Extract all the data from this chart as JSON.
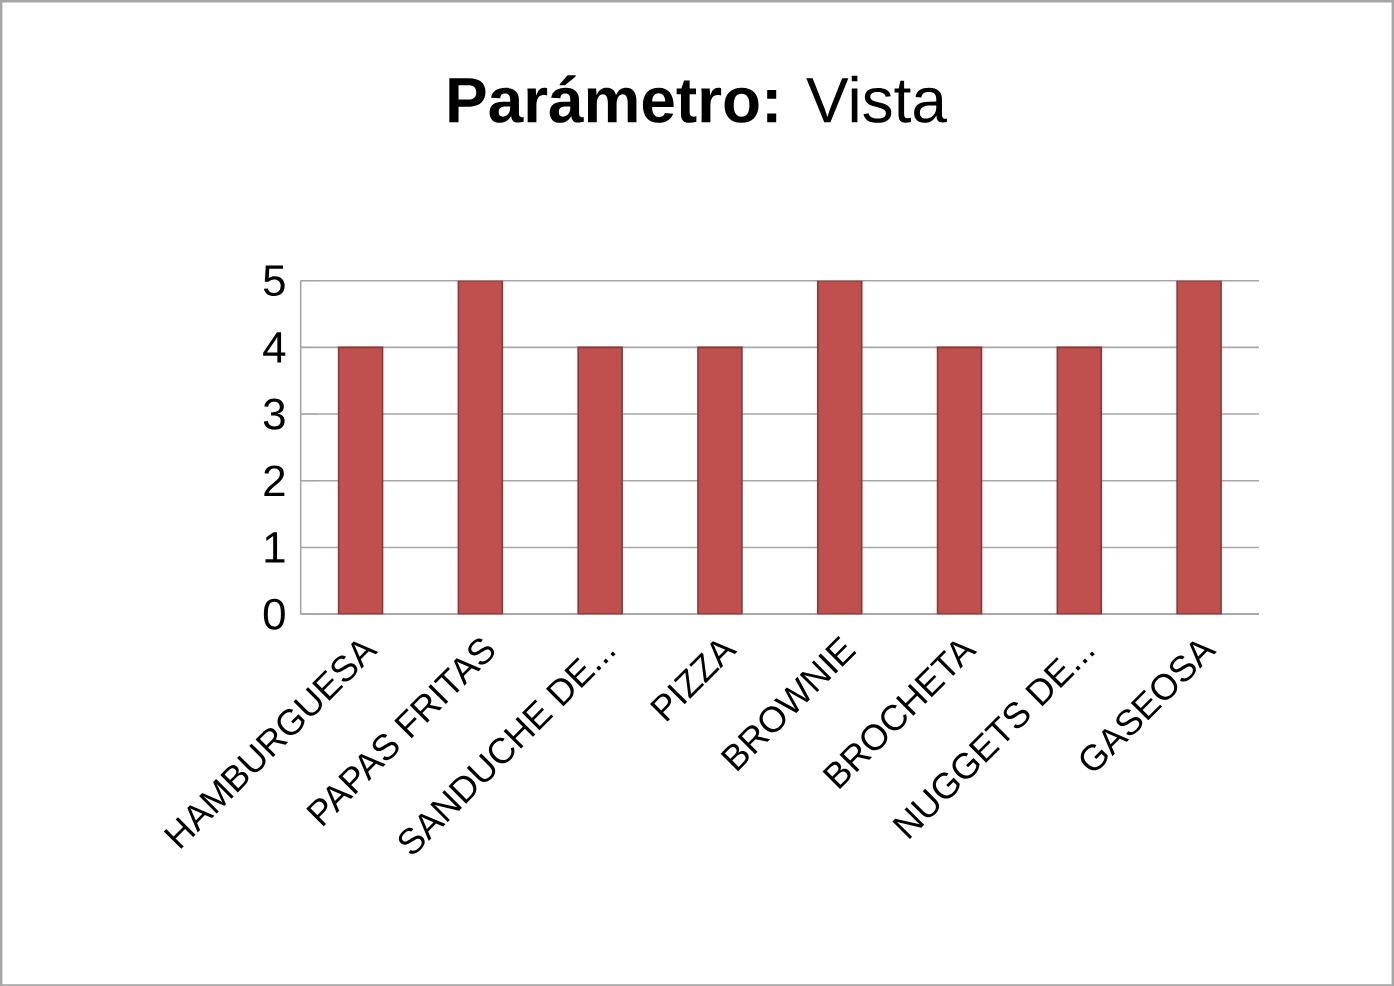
{
  "chart_data": {
    "type": "bar",
    "title": "**Parámetro:** Vista",
    "categories": [
      "HAMBURGUESA",
      "PAPAS FRITAS",
      "SANDUCHE DE...",
      "PIZZA",
      "BROWNIE",
      "BROCHETA",
      "NUGGETS DE...",
      "GASEOSA"
    ],
    "values": [
      4,
      5,
      4,
      4,
      5,
      4,
      4,
      5
    ],
    "color": "#c0504d",
    "ylim": [
      0,
      5
    ],
    "yticks": [
      0,
      1,
      2,
      3,
      4,
      5
    ],
    "grid": "y"
  }
}
